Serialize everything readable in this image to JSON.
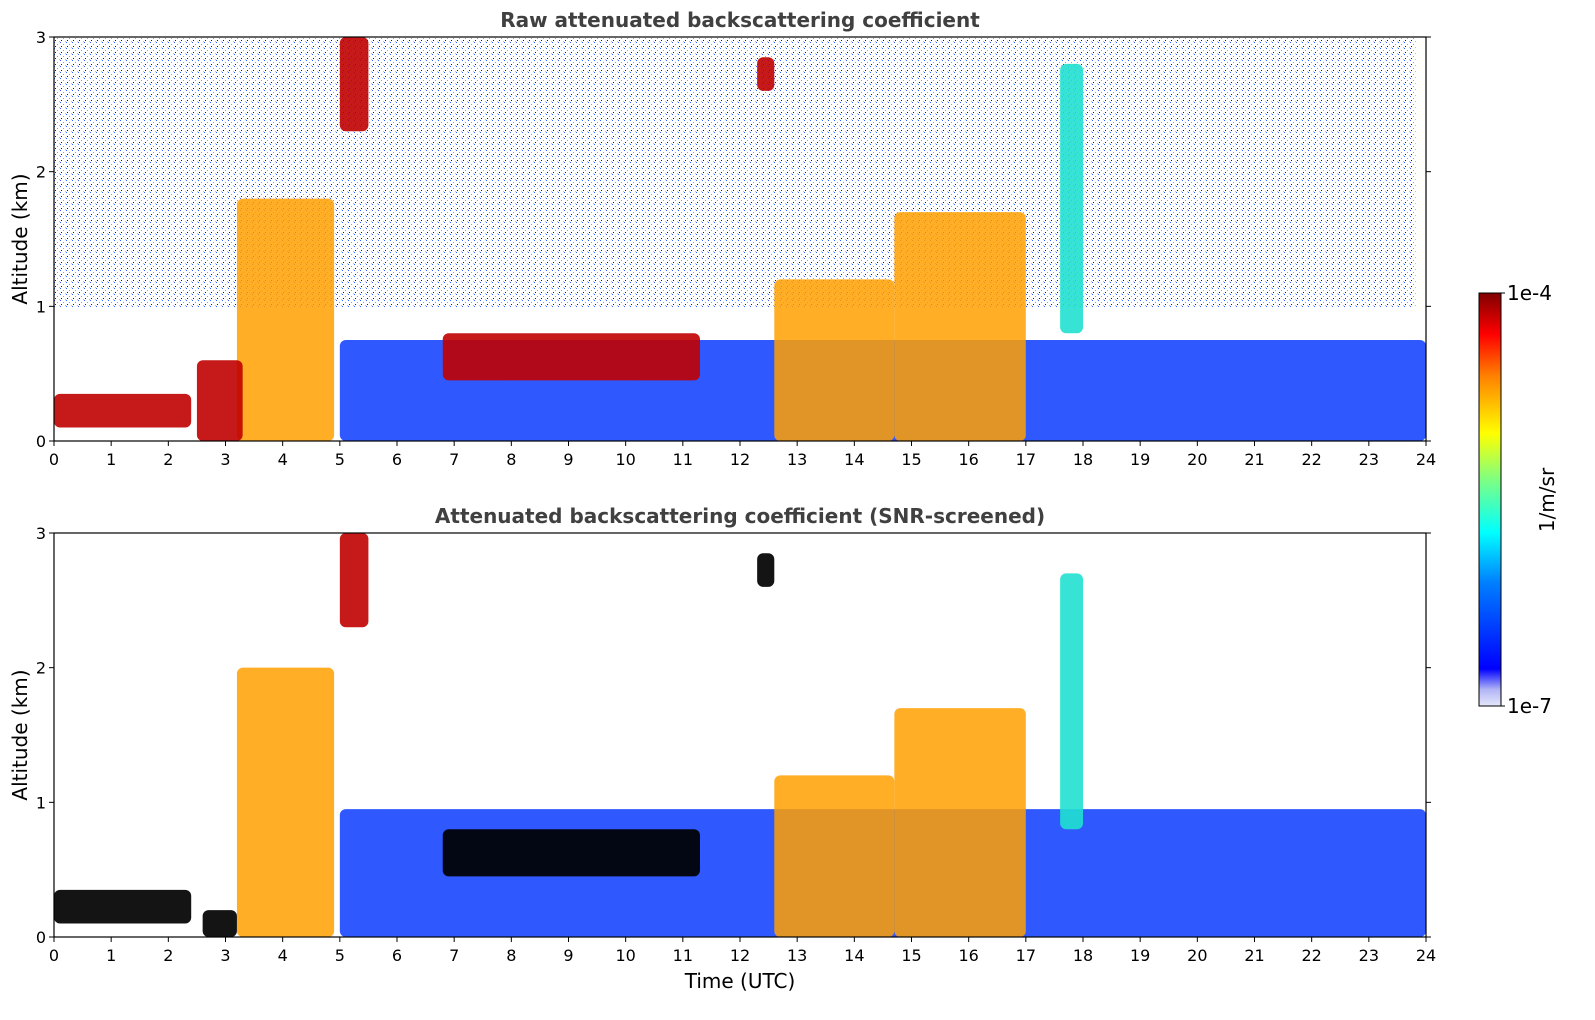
{
  "chart_data": [
    {
      "type": "heatmap",
      "title": "Raw attenuated backscattering coefficient",
      "xlabel": "",
      "ylabel": "Altitude (km)",
      "xlim": [
        0,
        24
      ],
      "ylim": [
        0,
        3
      ],
      "x_ticks": [
        "0",
        "1",
        "2",
        "3",
        "4",
        "5",
        "6",
        "7",
        "8",
        "9",
        "10",
        "11",
        "12",
        "13",
        "14",
        "15",
        "16",
        "17",
        "18",
        "19",
        "20",
        "21",
        "22",
        "23",
        "24"
      ],
      "y_ticks": [
        "0",
        "1",
        "2",
        "3"
      ],
      "colorscale": "jet",
      "features": [
        {
          "x": [
            0.0,
            2.4
          ],
          "y": [
            0.1,
            0.35
          ],
          "level": "high"
        },
        {
          "x": [
            2.5,
            3.3
          ],
          "y": [
            0.0,
            0.6
          ],
          "level": "high"
        },
        {
          "x": [
            3.2,
            4.9
          ],
          "y": [
            0.0,
            1.8
          ],
          "level": "medium-high"
        },
        {
          "x": [
            5.0,
            5.5
          ],
          "y": [
            2.3,
            3.0
          ],
          "level": "high"
        },
        {
          "x": [
            6.8,
            11.3
          ],
          "y": [
            0.45,
            0.8
          ],
          "level": "high"
        },
        {
          "x": [
            12.3,
            12.6
          ],
          "y": [
            2.6,
            2.85
          ],
          "level": "high"
        },
        {
          "x": [
            12.6,
            14.7
          ],
          "y": [
            0.0,
            1.2
          ],
          "level": "medium-high"
        },
        {
          "x": [
            14.7,
            17.0
          ],
          "y": [
            0.0,
            1.7
          ],
          "level": "medium-high"
        },
        {
          "x": [
            17.6,
            18.0
          ],
          "y": [
            0.8,
            2.8
          ],
          "level": "medium"
        },
        {
          "x": [
            5.0,
            24.0
          ],
          "y": [
            0.0,
            0.75
          ],
          "level": "low"
        }
      ]
    },
    {
      "type": "heatmap",
      "title": "Attenuated backscattering coefficient (SNR-screened)",
      "xlabel": "Time (UTC)",
      "ylabel": "Altitude (km)",
      "xlim": [
        0,
        24
      ],
      "ylim": [
        0,
        3
      ],
      "x_ticks": [
        "0",
        "1",
        "2",
        "3",
        "4",
        "5",
        "6",
        "7",
        "8",
        "9",
        "10",
        "11",
        "12",
        "13",
        "14",
        "15",
        "16",
        "17",
        "18",
        "19",
        "20",
        "21",
        "22",
        "23",
        "24"
      ],
      "y_ticks": [
        "0",
        "1",
        "2",
        "3"
      ],
      "colorscale": "jet",
      "features": [
        {
          "x": [
            0.0,
            2.4
          ],
          "y": [
            0.1,
            0.35
          ],
          "level": "saturated"
        },
        {
          "x": [
            2.6,
            3.2
          ],
          "y": [
            0.0,
            0.2
          ],
          "level": "saturated"
        },
        {
          "x": [
            3.2,
            4.9
          ],
          "y": [
            0.0,
            2.0
          ],
          "level": "medium-high"
        },
        {
          "x": [
            5.0,
            5.5
          ],
          "y": [
            2.3,
            3.0
          ],
          "level": "high"
        },
        {
          "x": [
            6.8,
            11.3
          ],
          "y": [
            0.45,
            0.8
          ],
          "level": "saturated"
        },
        {
          "x": [
            12.3,
            12.6
          ],
          "y": [
            2.6,
            2.85
          ],
          "level": "saturated"
        },
        {
          "x": [
            12.6,
            14.7
          ],
          "y": [
            0.0,
            1.2
          ],
          "level": "medium-high"
        },
        {
          "x": [
            14.7,
            17.0
          ],
          "y": [
            0.0,
            1.7
          ],
          "level": "medium-high"
        },
        {
          "x": [
            17.6,
            18.0
          ],
          "y": [
            0.8,
            2.7
          ],
          "level": "medium"
        },
        {
          "x": [
            5.0,
            24.0
          ],
          "y": [
            0.0,
            0.95
          ],
          "level": "low"
        }
      ]
    }
  ],
  "colorbar": {
    "label": "1/m/sr",
    "max_label": "1e-4",
    "min_label": "1e-7",
    "range": [
      1e-07,
      0.0001
    ],
    "scale": "log",
    "colors": [
      "#e6e8fa",
      "#0000ff",
      "#00a0ff",
      "#00ffff",
      "#80ff80",
      "#ffff00",
      "#ff8000",
      "#ff0000",
      "#800000"
    ]
  },
  "colors": {
    "title": "#404040",
    "axes": "#000000"
  }
}
